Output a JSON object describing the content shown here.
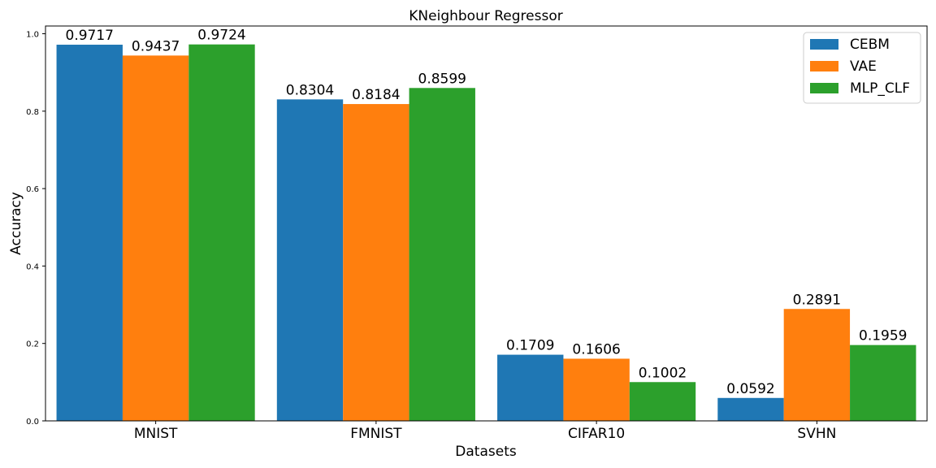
{
  "chart_data": {
    "type": "bar",
    "title": "KNeighbour Regressor",
    "xlabel": "Datasets",
    "ylabel": "Accuracy",
    "categories": [
      "MNIST",
      "FMNIST",
      "CIFAR10",
      "SVHN"
    ],
    "series": [
      {
        "name": "CEBM",
        "color": "#1f77b4",
        "values": [
          0.9717,
          0.8304,
          0.1709,
          0.0592
        ],
        "labels": [
          "0.9717",
          "0.8304",
          "0.1709",
          "0.0592"
        ]
      },
      {
        "name": "VAE",
        "color": "#ff7f0e",
        "values": [
          0.9437,
          0.8184,
          0.1606,
          0.2891
        ],
        "labels": [
          "0.9437",
          "0.8184",
          "0.1606",
          "0.2891"
        ]
      },
      {
        "name": "MLP_CLF",
        "color": "#2ca02c",
        "values": [
          0.9724,
          0.8599,
          0.1002,
          0.1959
        ],
        "labels": [
          "0.9724",
          "0.8599",
          "0.1002",
          "0.1959"
        ]
      }
    ],
    "ylim": [
      0,
      1.02
    ],
    "yticks": [
      "0.0",
      "0.2",
      "0.4",
      "0.6",
      "0.8",
      "1.0"
    ],
    "grid": false,
    "legend_position": "top-right"
  }
}
